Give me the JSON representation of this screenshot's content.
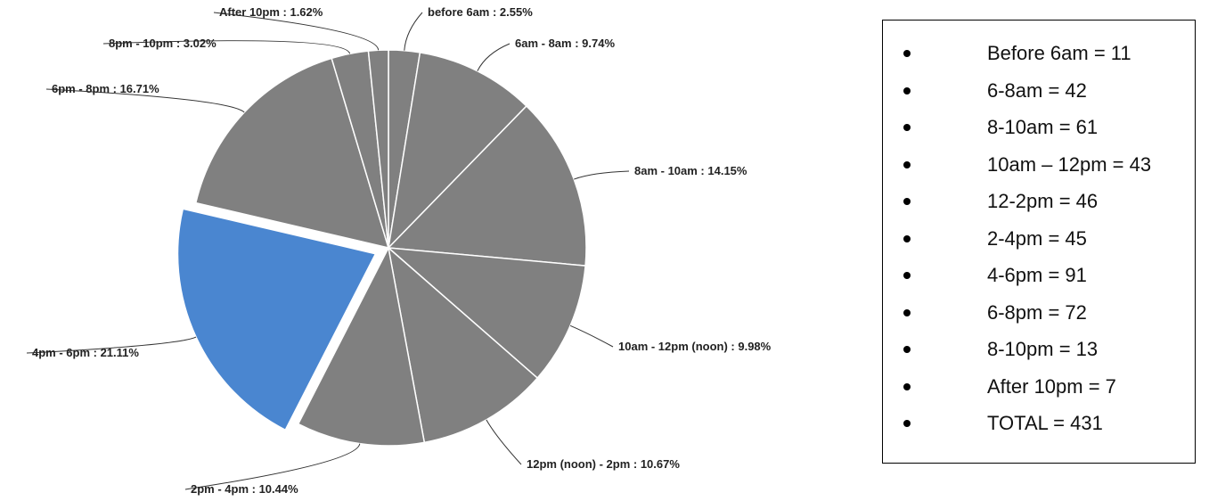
{
  "chart_data": {
    "type": "pie",
    "slices": [
      {
        "label": "before 6am : 2.55%",
        "value": 2.55,
        "color": "#808080"
      },
      {
        "label": "6am - 8am : 9.74%",
        "value": 9.74,
        "color": "#808080"
      },
      {
        "label": "8am - 10am : 14.15%",
        "value": 14.15,
        "color": "#808080"
      },
      {
        "label": "10am - 12pm (noon) : 9.98%",
        "value": 9.98,
        "color": "#808080"
      },
      {
        "label": "12pm (noon) - 2pm : 10.67%",
        "value": 10.67,
        "color": "#808080"
      },
      {
        "label": "2pm - 4pm : 10.44%",
        "value": 10.44,
        "color": "#808080"
      },
      {
        "label": "4pm - 6pm : 21.11%",
        "value": 21.11,
        "color": "#4a86d0",
        "exploded": true
      },
      {
        "label": "6pm - 8pm : 16.71%",
        "value": 16.71,
        "color": "#808080"
      },
      {
        "label": "8pm - 10pm : 3.02%",
        "value": 3.02,
        "color": "#808080"
      },
      {
        "label": "After 10pm : 1.62%",
        "value": 1.62,
        "color": "#808080"
      }
    ],
    "colors": {
      "slice": "#808080",
      "highlight": "#4a86d0",
      "divider": "#ffffff"
    }
  },
  "legend_box": {
    "items": [
      "Before 6am = 11",
      "6-8am = 42",
      "8-10am = 61",
      "10am – 12pm = 43",
      "12-2pm = 46",
      "2-4pm = 45",
      "4-6pm = 91",
      "6-8pm = 72",
      "8-10pm = 13",
      "After 10pm = 7",
      "TOTAL = 431"
    ]
  }
}
